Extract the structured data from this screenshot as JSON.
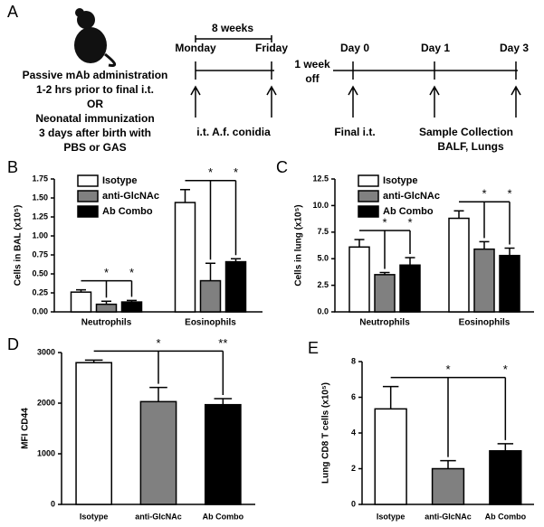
{
  "panel_a": {
    "label": "A",
    "left_text": [
      "Passive mAb administration",
      "1-2 hrs prior to final i.t.",
      "OR",
      "Neonatal immunization",
      "3 days after birth with",
      "PBS or GAS"
    ],
    "duration": "8 weeks",
    "days": [
      "Monday",
      "Friday"
    ],
    "gap": [
      "1 week",
      "off"
    ],
    "days2": [
      "Day 0",
      "Day 1",
      "Day 3"
    ],
    "events": [
      "i.t. A.f. conidia",
      "Final i.t.",
      "Sample Collection",
      "BALF, Lungs"
    ]
  },
  "chart_data": [
    {
      "type": "bar",
      "label": "B",
      "y_label": "Cells in BAL (x10⁵)",
      "categories": [
        "Neutrophils",
        "Eosinophils"
      ],
      "series": [
        {
          "name": "Isotype",
          "color": "#ffffff",
          "values": [
            0.26,
            1.44
          ],
          "errors": [
            0.03,
            0.17
          ]
        },
        {
          "name": "anti-GlcNAc",
          "color": "#808080",
          "values": [
            0.1,
            0.41
          ],
          "errors": [
            0.04,
            0.23
          ]
        },
        {
          "name": "Ab Combo",
          "color": "#000000",
          "values": [
            0.13,
            0.66
          ],
          "errors": [
            0.02,
            0.04
          ]
        }
      ],
      "ylim": [
        0,
        1.75
      ],
      "yticks": [
        {
          "value": 0,
          "label": "0.00"
        },
        0.25,
        {
          "value": 0.5,
          "label": "0.50"
        },
        0.75,
        {
          "value": 1,
          "label": "1.00"
        },
        1.25,
        {
          "value": 1.5,
          "label": "1.50"
        },
        1.75
      ],
      "annotations": [
        "*",
        "*",
        "*",
        "*"
      ]
    },
    {
      "type": "bar",
      "label": "C",
      "y_label": "Cells in lung (x10⁵)",
      "categories": [
        "Neutrophils",
        "Eosinophils"
      ],
      "series": [
        {
          "name": "Isotype",
          "color": "#ffffff",
          "values": [
            6.1,
            8.8
          ],
          "errors": [
            0.7,
            0.7
          ]
        },
        {
          "name": "anti-GlcNAc",
          "color": "#808080",
          "values": [
            3.5,
            5.9
          ],
          "errors": [
            0.2,
            0.7
          ]
        },
        {
          "name": "Ab Combo",
          "color": "#000000",
          "values": [
            4.4,
            5.3
          ],
          "errors": [
            0.7,
            0.7
          ]
        }
      ],
      "ylim": [
        0,
        12.5
      ],
      "yticks": [
        {
          "value": 0,
          "label": "0.0"
        },
        2.5,
        {
          "value": 5,
          "label": "5.0"
        },
        7.5,
        {
          "value": 10,
          "label": "10.0"
        },
        12.5
      ],
      "annotations": [
        "*",
        "*",
        "*",
        "*"
      ]
    },
    {
      "type": "bar",
      "label": "D",
      "y_label": "MFI CD44",
      "categories": [
        "Isotype",
        "anti-GlcNAc",
        "Ab Combo"
      ],
      "values": [
        2800,
        2030,
        1970
      ],
      "errors": [
        50,
        280,
        120
      ],
      "colors": [
        "#ffffff",
        "#808080",
        "#000000"
      ],
      "ylim": [
        0,
        3000
      ],
      "yticks": [
        0,
        1000,
        2000,
        3000
      ],
      "annotations": [
        "*",
        "**"
      ]
    },
    {
      "type": "bar",
      "label": "E",
      "y_label": "Lung CD8 T cells (x10⁵)",
      "categories": [
        "Isotype",
        "anti-GlcNAc",
        "Ab Combo"
      ],
      "values": [
        5.35,
        2.0,
        3.0
      ],
      "errors": [
        1.25,
        0.45,
        0.4
      ],
      "colors": [
        "#ffffff",
        "#808080",
        "#000000"
      ],
      "ylim": [
        0,
        8
      ],
      "yticks": [
        0,
        2,
        4,
        6,
        8
      ],
      "annotations": [
        "*",
        "*"
      ]
    }
  ]
}
